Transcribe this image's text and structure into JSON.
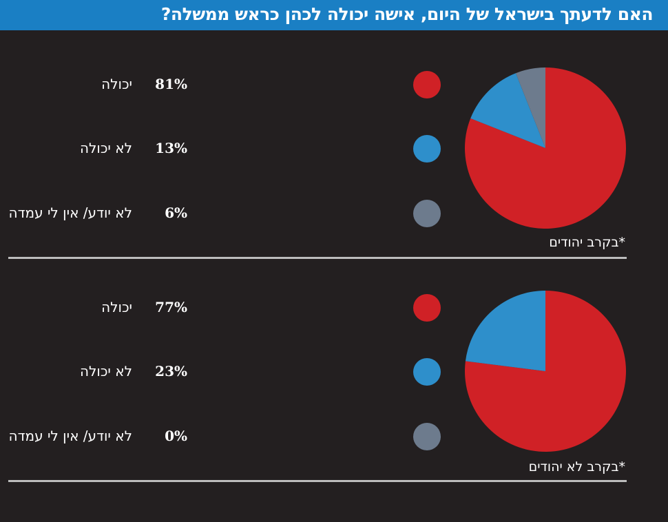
{
  "title": "האם לדעתך בישראל של היום, אישה יכולה לכהן כראש ממשלה?",
  "colors": {
    "header": "#1a7fc4",
    "background": "#231f20",
    "can": "#d02126",
    "cannot": "#2e8fcb",
    "unknown": "#6d7b8d",
    "divider": "#bdbdbd"
  },
  "chart_data": [
    {
      "type": "pie",
      "note": "*בקרב יהודים",
      "slices": [
        {
          "label": "יכולה",
          "value": 81,
          "pct_label": "81%",
          "color": "#d02126"
        },
        {
          "label": "לא יכולה",
          "value": 13,
          "pct_label": "13%",
          "color": "#2e8fcb"
        },
        {
          "label": "לא יודע/ אין לי עמדה",
          "value": 6,
          "pct_label": "6%",
          "color": "#6d7b8d"
        }
      ]
    },
    {
      "type": "pie",
      "note": "*בקרב לא יהודים",
      "slices": [
        {
          "label": "יכולה",
          "value": 77,
          "pct_label": "77%",
          "color": "#d02126"
        },
        {
          "label": "לא יכולה",
          "value": 23,
          "pct_label": "23%",
          "color": "#2e8fcb"
        },
        {
          "label": "לא יודע/ אין לי עמדה",
          "value": 0,
          "pct_label": "0%",
          "color": "#6d7b8d"
        }
      ]
    }
  ]
}
